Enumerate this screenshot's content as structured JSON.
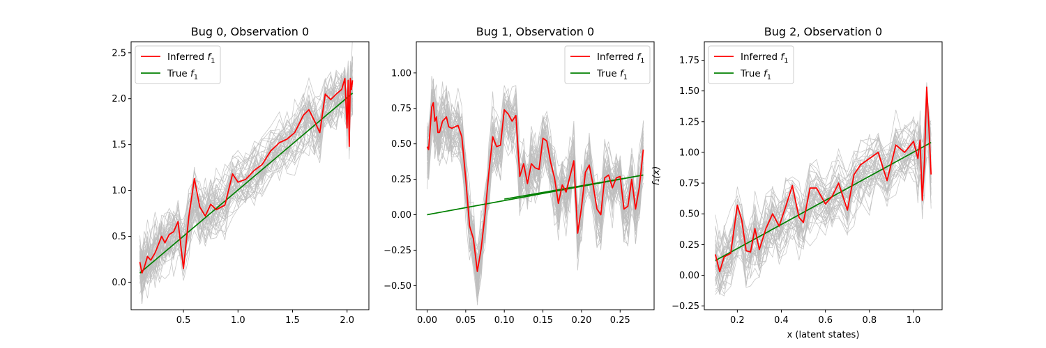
{
  "chart_data": [
    {
      "type": "line",
      "title": "Bug 0, Observation 0",
      "xlabel": "",
      "ylabel": "",
      "xlim": [
        0.02,
        2.2
      ],
      "ylim": [
        -0.3,
        2.62
      ],
      "xticks": [
        0.5,
        1.0,
        1.5,
        2.0
      ],
      "xtick_labels": [
        "0.5",
        "1.0",
        "1.5",
        "2.0"
      ],
      "yticks": [
        0.0,
        0.5,
        1.0,
        1.5,
        2.0,
        2.5
      ],
      "ytick_labels": [
        "0.0",
        "0.5",
        "1.0",
        "1.5",
        "2.0",
        "2.5"
      ],
      "legend": {
        "position": "top-left",
        "entries": [
          {
            "label": "Inferred",
            "sub": "1",
            "color": "#ff0000"
          },
          {
            "label": "True",
            "sub": "1",
            "color": "#008000"
          }
        ]
      },
      "sample_band_color": "#bebebe",
      "series": [
        {
          "name": "Inferred f1",
          "color": "#ff0000",
          "x": [
            0.1,
            0.12,
            0.14,
            0.17,
            0.2,
            0.24,
            0.28,
            0.3,
            0.33,
            0.37,
            0.41,
            0.45,
            0.5,
            0.55,
            0.6,
            0.65,
            0.7,
            0.75,
            0.8,
            0.88,
            0.95,
            1.0,
            1.07,
            1.15,
            1.22,
            1.3,
            1.38,
            1.45,
            1.52,
            1.6,
            1.65,
            1.7,
            1.75,
            1.8,
            1.85,
            1.9,
            1.95,
            1.98,
            2.0,
            2.01,
            2.02,
            2.03,
            2.04,
            2.05
          ],
          "y": [
            0.22,
            0.1,
            0.16,
            0.28,
            0.24,
            0.32,
            0.44,
            0.5,
            0.43,
            0.52,
            0.55,
            0.66,
            0.15,
            0.72,
            1.13,
            0.82,
            0.72,
            0.85,
            0.79,
            0.84,
            1.18,
            1.09,
            1.12,
            1.22,
            1.28,
            1.43,
            1.52,
            1.56,
            1.63,
            1.82,
            1.88,
            1.76,
            1.63,
            2.05,
            1.99,
            2.05,
            2.1,
            2.22,
            1.68,
            2.2,
            1.48,
            2.22,
            2.1,
            2.2
          ]
        },
        {
          "name": "True f1",
          "color": "#008000",
          "x": [
            0.1,
            2.05
          ],
          "y": [
            0.1,
            2.06
          ]
        }
      ]
    },
    {
      "type": "line",
      "title": "Bug 1, Observation 0",
      "xlabel": "",
      "ylabel": "",
      "xlim": [
        -0.014,
        0.294
      ],
      "ylim": [
        -0.67,
        1.22
      ],
      "xticks": [
        0.0,
        0.05,
        0.1,
        0.15,
        0.2,
        0.25
      ],
      "xtick_labels": [
        "0.00",
        "0.05",
        "0.10",
        "0.15",
        "0.20",
        "0.25"
      ],
      "yticks": [
        -0.5,
        -0.25,
        0.0,
        0.25,
        0.5,
        0.75,
        1.0
      ],
      "ytick_labels": [
        "−0.50",
        "−0.25",
        "0.00",
        "0.25",
        "0.50",
        "0.75",
        "1.00"
      ],
      "legend": {
        "position": "top-right",
        "entries": [
          {
            "label": "Inferred",
            "sub": "1",
            "color": "#ff0000"
          },
          {
            "label": "True",
            "sub": "1",
            "color": "#008000"
          }
        ]
      },
      "sample_band_color": "#bebebe",
      "series": [
        {
          "name": "Inferred f1",
          "color": "#ff0000",
          "x": [
            0.0,
            0.002,
            0.006,
            0.008,
            0.01,
            0.012,
            0.014,
            0.016,
            0.02,
            0.025,
            0.028,
            0.032,
            0.04,
            0.045,
            0.05,
            0.055,
            0.06,
            0.065,
            0.07,
            0.075,
            0.08,
            0.085,
            0.09,
            0.095,
            0.1,
            0.105,
            0.11,
            0.115,
            0.12,
            0.125,
            0.13,
            0.135,
            0.14,
            0.145,
            0.15,
            0.155,
            0.16,
            0.165,
            0.17,
            0.175,
            0.18,
            0.185,
            0.19,
            0.195,
            0.2,
            0.205,
            0.21,
            0.215,
            0.22,
            0.225,
            0.23,
            0.235,
            0.24,
            0.245,
            0.25,
            0.255,
            0.26,
            0.265,
            0.27,
            0.275,
            0.28
          ],
          "y": [
            0.48,
            0.46,
            0.76,
            0.79,
            0.66,
            0.69,
            0.58,
            0.58,
            0.66,
            0.69,
            0.62,
            0.61,
            0.63,
            0.55,
            0.25,
            -0.08,
            -0.17,
            -0.4,
            -0.24,
            0.0,
            0.3,
            0.55,
            0.48,
            0.49,
            0.74,
            0.71,
            0.66,
            0.7,
            0.27,
            0.36,
            0.22,
            0.36,
            0.33,
            0.32,
            0.54,
            0.52,
            0.37,
            0.26,
            0.08,
            0.21,
            0.16,
            0.27,
            0.38,
            -0.13,
            0.05,
            0.3,
            0.35,
            0.21,
            0.04,
            0.0,
            0.26,
            0.28,
            0.19,
            0.26,
            0.27,
            0.04,
            0.06,
            0.25,
            0.04,
            0.2,
            0.46
          ]
        },
        {
          "name": "True f1",
          "color": "#008000",
          "x": [
            0.0,
            0.28,
            0.1
          ],
          "y": [
            0.0,
            0.28,
            0.11
          ]
        }
      ]
    },
    {
      "type": "line",
      "title": "Bug 2, Observation 0",
      "xlabel": "x (latent states)",
      "ylabel": "f₁(x)",
      "xlim": [
        0.05,
        1.13
      ],
      "ylim": [
        -0.28,
        1.9
      ],
      "xticks": [
        0.2,
        0.4,
        0.6,
        0.8,
        1.0
      ],
      "xtick_labels": [
        "0.2",
        "0.4",
        "0.6",
        "0.8",
        "1.0"
      ],
      "yticks": [
        -0.25,
        0.0,
        0.25,
        0.5,
        0.75,
        1.0,
        1.25,
        1.5,
        1.75
      ],
      "ytick_labels": [
        "−0.25",
        "0.00",
        "0.25",
        "0.50",
        "0.75",
        "1.00",
        "1.25",
        "1.50",
        "1.75"
      ],
      "legend": {
        "position": "top-left",
        "entries": [
          {
            "label": "Inferred",
            "sub": "1",
            "color": "#ff0000"
          },
          {
            "label": "True",
            "sub": "1",
            "color": "#008000"
          }
        ]
      },
      "sample_band_color": "#bebebe",
      "series": [
        {
          "name": "Inferred f1",
          "color": "#ff0000",
          "x": [
            0.1,
            0.12,
            0.14,
            0.17,
            0.2,
            0.22,
            0.24,
            0.26,
            0.28,
            0.3,
            0.33,
            0.36,
            0.39,
            0.42,
            0.45,
            0.48,
            0.5,
            0.53,
            0.56,
            0.6,
            0.63,
            0.66,
            0.7,
            0.73,
            0.76,
            0.8,
            0.84,
            0.88,
            0.92,
            0.96,
            1.0,
            1.02,
            1.03,
            1.04,
            1.05,
            1.06,
            1.07,
            1.08
          ],
          "y": [
            0.17,
            0.03,
            0.15,
            0.18,
            0.57,
            0.45,
            0.2,
            0.19,
            0.38,
            0.21,
            0.38,
            0.5,
            0.4,
            0.56,
            0.73,
            0.47,
            0.43,
            0.71,
            0.71,
            0.58,
            0.64,
            0.75,
            0.53,
            0.82,
            0.9,
            0.95,
            1.0,
            0.77,
            1.06,
            1.0,
            1.09,
            0.95,
            1.1,
            0.61,
            0.93,
            1.53,
            1.2,
            0.82
          ]
        },
        {
          "name": "True f1",
          "color": "#008000",
          "x": [
            0.1,
            1.08
          ],
          "y": [
            0.12,
            1.08
          ]
        }
      ]
    }
  ]
}
